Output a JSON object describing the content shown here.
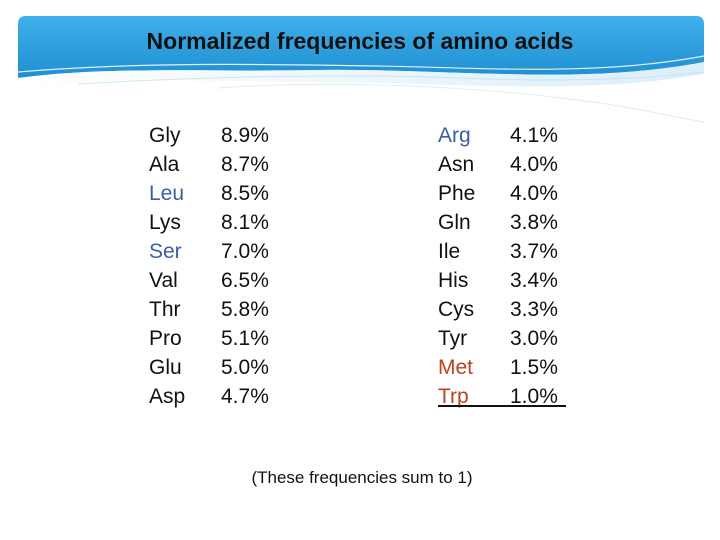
{
  "title": "Normalized frequencies of amino acids",
  "colors": {
    "accent_blue": "#3b5fa7",
    "accent_red": "#b8451c",
    "banner": "#33a6e3"
  },
  "left_table": [
    {
      "name": "Gly",
      "freq": "8.9%"
    },
    {
      "name": "Ala",
      "freq": "8.7%"
    },
    {
      "name": "Leu",
      "freq": "8.5%"
    },
    {
      "name": "Lys",
      "freq": "8.1%"
    },
    {
      "name": "Ser",
      "freq": "7.0%"
    },
    {
      "name": "Val",
      "freq": "6.5%"
    },
    {
      "name": "Thr",
      "freq": "5.8%"
    },
    {
      "name": "Pro",
      "freq": "5.1%"
    },
    {
      "name": "Glu",
      "freq": "5.0%"
    },
    {
      "name": "Asp",
      "freq": "4.7%"
    }
  ],
  "right_table": [
    {
      "name": "Arg",
      "freq": "4.1%"
    },
    {
      "name": "Asn",
      "freq": "4.0%"
    },
    {
      "name": "Phe",
      "freq": "4.0%"
    },
    {
      "name": "Gln",
      "freq": "3.8%"
    },
    {
      "name": "Ile",
      "freq": "3.7%"
    },
    {
      "name": "His",
      "freq": "3.4%"
    },
    {
      "name": "Cys",
      "freq": "3.3%"
    },
    {
      "name": "Tyr",
      "freq": "3.0%"
    },
    {
      "name": "Met",
      "freq": "1.5%"
    },
    {
      "name": "Trp",
      "freq": "1.0%"
    }
  ],
  "note": "(These frequencies sum to 1)"
}
